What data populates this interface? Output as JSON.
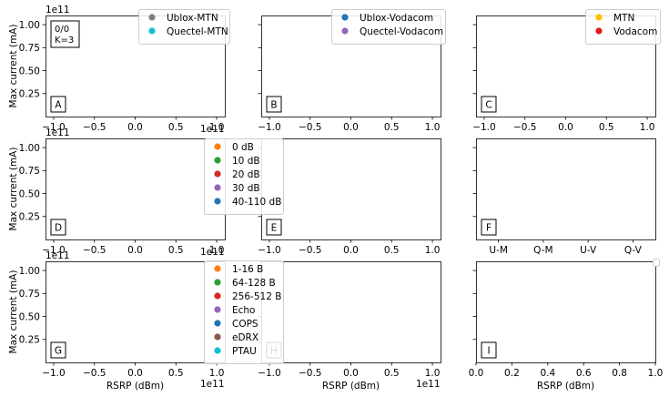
{
  "figure": {
    "y_label": "Max current (mA)",
    "x_label": "RSRP (dBm)",
    "offset_label": "1e11"
  },
  "chart_data": [
    {
      "panel": "A",
      "type": "scatter",
      "xlim": [
        -110000000000.0,
        110000000000.0
      ],
      "ylim": [
        0,
        110000000000.0
      ],
      "xticks": [
        "−1.0",
        "−0.5",
        "0.0",
        "0.5",
        "1.0"
      ],
      "yticks": [
        "0.25",
        "0.50",
        "0.75",
        "1.00"
      ],
      "x_offset": "1e11",
      "y_offset": "1e11",
      "ylabel": "Max current (mA)",
      "annotation": [
        "0/0",
        "K=3"
      ],
      "legend": {
        "placement": "top-right",
        "entries": [
          {
            "label": "Ublox-MTN",
            "color": "#7f7f7f"
          },
          {
            "label": "Quectel-MTN",
            "color": "#17becf"
          }
        ]
      },
      "series": []
    },
    {
      "panel": "B",
      "type": "scatter",
      "xlim": [
        -110000000000.0,
        110000000000.0
      ],
      "ylim": [
        0,
        110000000000.0
      ],
      "xticks": [
        "−1.0",
        "−0.5",
        "0.0",
        "0.5",
        "1.0"
      ],
      "legend": {
        "placement": "top-right",
        "entries": [
          {
            "label": "Ublox-Vodacom",
            "color": "#1f77b4"
          },
          {
            "label": "Quectel-Vodacom",
            "color": "#9467bd"
          }
        ]
      },
      "series": []
    },
    {
      "panel": "C",
      "type": "scatter",
      "xlim": [
        -110000000000.0,
        110000000000.0
      ],
      "ylim": [
        0,
        110000000000.0
      ],
      "xticks": [
        "−1.0",
        "−0.5",
        "0.0",
        "0.5",
        "1.0"
      ],
      "legend": {
        "placement": "top-right",
        "entries": [
          {
            "label": "MTN",
            "color": "#ffbf00"
          },
          {
            "label": "Vodacom",
            "color": "#e31a1c"
          }
        ]
      },
      "series": []
    },
    {
      "panel": "D",
      "type": "scatter",
      "xlim": [
        -110000000000.0,
        110000000000.0
      ],
      "ylim": [
        0,
        110000000000.0
      ],
      "xticks": [
        "−1.0",
        "−0.5",
        "0.0",
        "0.5",
        "1.0"
      ],
      "yticks": [
        "0.25",
        "0.50",
        "0.75",
        "1.00"
      ],
      "x_offset": "1e11",
      "y_offset": "1e11",
      "ylabel": "Max current (mA)",
      "legend": {
        "placement": "top-right",
        "entries": [
          {
            "label": "0 dB",
            "color": "#ff7f0e"
          },
          {
            "label": "10 dB",
            "color": "#2ca02c"
          },
          {
            "label": "20 dB",
            "color": "#d62728"
          },
          {
            "label": "30 dB",
            "color": "#9467bd"
          },
          {
            "label": "40-110 dB",
            "color": "#1f77b4"
          }
        ]
      },
      "series": []
    },
    {
      "panel": "E",
      "type": "scatter",
      "xlim": [
        -110000000000.0,
        110000000000.0
      ],
      "ylim": [
        0,
        110000000000.0
      ],
      "xticks": [
        "−1.0",
        "−0.5",
        "0.0",
        "0.5",
        "1.0"
      ],
      "series": []
    },
    {
      "panel": "F",
      "type": "bar",
      "categories": [
        "U-M",
        "Q-M",
        "U-V",
        "Q-V"
      ],
      "ylim": [
        0,
        110000000000.0
      ],
      "series": []
    },
    {
      "panel": "G",
      "type": "scatter",
      "xlim": [
        -110000000000.0,
        110000000000.0
      ],
      "ylim": [
        0,
        110000000000.0
      ],
      "xticks": [
        "−1.0",
        "−0.5",
        "0.0",
        "0.5",
        "1.0"
      ],
      "yticks": [
        "0.25",
        "0.50",
        "0.75",
        "1.00"
      ],
      "x_offset": "1e11",
      "y_offset": "1e11",
      "ylabel": "Max current (mA)",
      "xlabel": "RSRP (dBm)",
      "legend": {
        "placement": "top-right",
        "entries": [
          {
            "label": "1-16 B",
            "color": "#ff7f0e"
          },
          {
            "label": "64-128 B",
            "color": "#2ca02c"
          },
          {
            "label": "256-512 B",
            "color": "#d62728"
          },
          {
            "label": "Echo",
            "color": "#9467bd"
          },
          {
            "label": "COPS",
            "color": "#1f77b4"
          },
          {
            "label": "eDRX",
            "color": "#8c564b"
          },
          {
            "label": "PTAU",
            "color": "#17becf"
          }
        ]
      },
      "series": []
    },
    {
      "panel": "H",
      "type": "scatter",
      "xlim": [
        -110000000000.0,
        110000000000.0
      ],
      "ylim": [
        0,
        110000000000.0
      ],
      "xticks": [
        "−1.0",
        "−0.5",
        "0.0",
        "0.5",
        "1.0"
      ],
      "x_offset": "1e11",
      "xlabel": "RSRP (dBm)",
      "series": []
    },
    {
      "panel": "I",
      "type": "scatter",
      "xlim": [
        0,
        1
      ],
      "ylim": [
        0,
        110000000000.0
      ],
      "xticks": [
        "0.0",
        "0.2",
        "0.4",
        "0.6",
        "0.8",
        "1.0"
      ],
      "xlabel": "RSRP (dBm)",
      "series": []
    }
  ]
}
